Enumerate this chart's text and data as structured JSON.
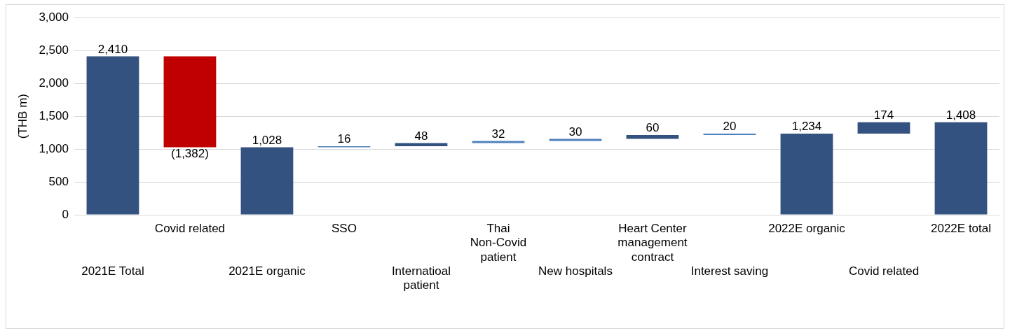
{
  "chart_data": {
    "type": "bar",
    "ylabel": "(THB m)",
    "categories": [
      "2021E Total",
      "Covid related",
      "2021E organic",
      "SSO",
      "Internatioal patient",
      "Thai Non-Covid patient",
      "New hospitals",
      "Heart Center management contract",
      "Interest saving",
      "2022E organic",
      "Covid related",
      "2022E total"
    ],
    "values": [
      2410,
      -1382,
      1028,
      16,
      48,
      32,
      30,
      60,
      20,
      1234,
      174,
      1408
    ],
    "base": [
      0,
      2410,
      0,
      1028,
      1044,
      1092,
      1124,
      1154,
      1214,
      0,
      1234,
      0
    ],
    "colors": [
      "#34527f",
      "#c00000",
      "#34527f",
      "#4f81bd",
      "#34527f",
      "#4f81bd",
      "#4f81bd",
      "#34527f",
      "#4f81bd",
      "#34527f",
      "#34527f",
      "#34527f"
    ],
    "value_labels": [
      "2,410",
      "(1,382)",
      "1,028",
      "16",
      "48",
      "32",
      "30",
      "60",
      "20",
      "1,234",
      "174",
      "1,408"
    ],
    "ylim": [
      0,
      3000
    ],
    "yticks": [
      {
        "value": 0,
        "label": "0"
      },
      {
        "value": 500,
        "label": "500"
      },
      {
        "value": 1000,
        "label": "1,000"
      },
      {
        "value": 1500,
        "label": "1,500"
      },
      {
        "value": 2000,
        "label": "2,000"
      },
      {
        "value": 2500,
        "label": "2,500"
      },
      {
        "value": 3000,
        "label": "3,000"
      }
    ],
    "grid": "y",
    "legend": false
  }
}
